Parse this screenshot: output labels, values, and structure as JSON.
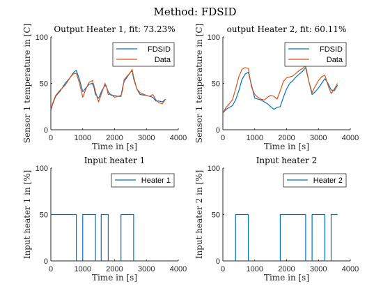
{
  "figure": {
    "title": "Method: FDSID"
  },
  "colors": {
    "series_a": "#0072BD",
    "series_b": "#D95319",
    "axis": "#262626"
  },
  "chart_data": [
    {
      "type": "line",
      "title": "Output Heater 1, fit: 73.23%",
      "xlabel": "Time in [s]",
      "ylabel": "Sensor 1 temperature in [C]",
      "xlim": [
        0,
        4000
      ],
      "ylim": [
        0,
        100
      ],
      "xticks": [
        0,
        1000,
        2000,
        3000,
        4000
      ],
      "yticks": [
        0,
        50,
        100
      ],
      "legend": "top-right",
      "series": [
        {
          "name": "FDSID",
          "color": "#0072BD",
          "x": [
            0,
            50,
            150,
            300,
            450,
            600,
            700,
            760,
            800,
            900,
            1000,
            1100,
            1200,
            1300,
            1350,
            1400,
            1500,
            1600,
            1700,
            1750,
            1800,
            1900,
            2000,
            2100,
            2200,
            2250,
            2300,
            2400,
            2500,
            2550,
            2600,
            2700,
            2800,
            3000,
            3100,
            3200,
            3300,
            3400,
            3500,
            3600
          ],
          "y": [
            20,
            27,
            36,
            42,
            50,
            56,
            61,
            63,
            64,
            54,
            41,
            45,
            49,
            50,
            46,
            38,
            34,
            42,
            48,
            46,
            41,
            37,
            37,
            36,
            36,
            45,
            52,
            57,
            62,
            64,
            55,
            44,
            38,
            37,
            36,
            35,
            31,
            31,
            30,
            33
          ]
        },
        {
          "name": "Data",
          "color": "#D95319",
          "x": [
            0,
            50,
            150,
            300,
            450,
            600,
            700,
            800,
            900,
            1000,
            1100,
            1200,
            1300,
            1350,
            1400,
            1500,
            1600,
            1700,
            1750,
            1800,
            1900,
            2000,
            2100,
            2200,
            2250,
            2300,
            2400,
            2500,
            2550,
            2600,
            2700,
            2800,
            3000,
            3100,
            3200,
            3300,
            3400,
            3500,
            3600
          ],
          "y": [
            21,
            28,
            37,
            43,
            48,
            56,
            60,
            61,
            50,
            35,
            44,
            51,
            53,
            48,
            41,
            30,
            40,
            50,
            46,
            38,
            38,
            35,
            36,
            37,
            42,
            54,
            58,
            62,
            65,
            57,
            44,
            40,
            37,
            36,
            38,
            32,
            29,
            28,
            33
          ]
        }
      ]
    },
    {
      "type": "line",
      "title": "output Heater 2, fit: 60.11%",
      "xlabel": "Time in [s]",
      "ylabel": "Sensor 1 temperature in [C]",
      "xlim": [
        0,
        4000
      ],
      "ylim": [
        0,
        100
      ],
      "xticks": [
        0,
        1000,
        2000,
        3000,
        4000
      ],
      "yticks": [
        0,
        50,
        100
      ],
      "legend": "top-right",
      "series": [
        {
          "name": "FDSID",
          "color": "#0072BD",
          "x": [
            0,
            100,
            200,
            300,
            400,
            500,
            600,
            700,
            800,
            900,
            1000,
            1100,
            1200,
            1300,
            1400,
            1500,
            1600,
            1700,
            1800,
            1900,
            2000,
            2100,
            2200,
            2300,
            2400,
            2500,
            2600,
            2700,
            2800,
            2900,
            3000,
            3100,
            3200,
            3300,
            3400,
            3500,
            3600
          ],
          "y": [
            18,
            22,
            24,
            26,
            32,
            42,
            54,
            60,
            62,
            48,
            34,
            33,
            32,
            30,
            28,
            25,
            22,
            24,
            25,
            35,
            44,
            50,
            53,
            57,
            60,
            63,
            67,
            52,
            38,
            41,
            45,
            50,
            55,
            50,
            43,
            42,
            48
          ]
        },
        {
          "name": "Data",
          "color": "#D95319",
          "x": [
            0,
            100,
            200,
            300,
            400,
            500,
            600,
            700,
            800,
            850,
            900,
            1000,
            1100,
            1200,
            1300,
            1400,
            1500,
            1600,
            1700,
            1800,
            1900,
            2000,
            2100,
            2200,
            2300,
            2400,
            2500,
            2600,
            2700,
            2800,
            2900,
            3000,
            3100,
            3200,
            3300,
            3400,
            3500,
            3600
          ],
          "y": [
            18,
            24,
            28,
            32,
            44,
            57,
            65,
            67,
            66,
            55,
            46,
            38,
            35,
            33,
            32,
            35,
            37,
            36,
            33,
            42,
            52,
            56,
            57,
            58,
            61,
            64,
            66,
            69,
            52,
            40,
            47,
            53,
            57,
            59,
            48,
            39,
            44,
            50
          ]
        }
      ]
    },
    {
      "type": "line",
      "title": "Input heater 1",
      "xlabel": "Time in [s]",
      "ylabel": "Input heater 1 in [%]",
      "xlim": [
        0,
        4000
      ],
      "ylim": [
        0,
        100
      ],
      "xticks": [
        0,
        1000,
        2000,
        3000,
        4000
      ],
      "yticks": [
        0,
        50,
        100
      ],
      "legend": "top-right",
      "series": [
        {
          "name": "Heater 1",
          "color": "#0072BD",
          "x": [
            0,
            800,
            800,
            1000,
            1000,
            1400,
            1400,
            1580,
            1580,
            1800,
            1800,
            2200,
            2200,
            2600,
            2600,
            3600
          ],
          "y": [
            50,
            50,
            0,
            0,
            50,
            50,
            0,
            0,
            50,
            50,
            0,
            0,
            50,
            50,
            0,
            0
          ]
        }
      ]
    },
    {
      "type": "line",
      "title": "Input heater 2",
      "xlabel": "Time in [s]",
      "ylabel": "Input heater 2 in [%]",
      "xlim": [
        0,
        4000
      ],
      "ylim": [
        0,
        100
      ],
      "xticks": [
        0,
        1000,
        2000,
        3000,
        4000
      ],
      "yticks": [
        0,
        50,
        100
      ],
      "legend": "top-right",
      "series": [
        {
          "name": "Heater 2",
          "color": "#0072BD",
          "x": [
            0,
            400,
            400,
            800,
            800,
            1800,
            1800,
            2600,
            2600,
            2800,
            2800,
            3200,
            3200,
            3400,
            3400,
            3600
          ],
          "y": [
            0,
            0,
            50,
            50,
            0,
            0,
            50,
            50,
            0,
            0,
            50,
            50,
            0,
            0,
            50,
            50
          ]
        }
      ]
    }
  ]
}
